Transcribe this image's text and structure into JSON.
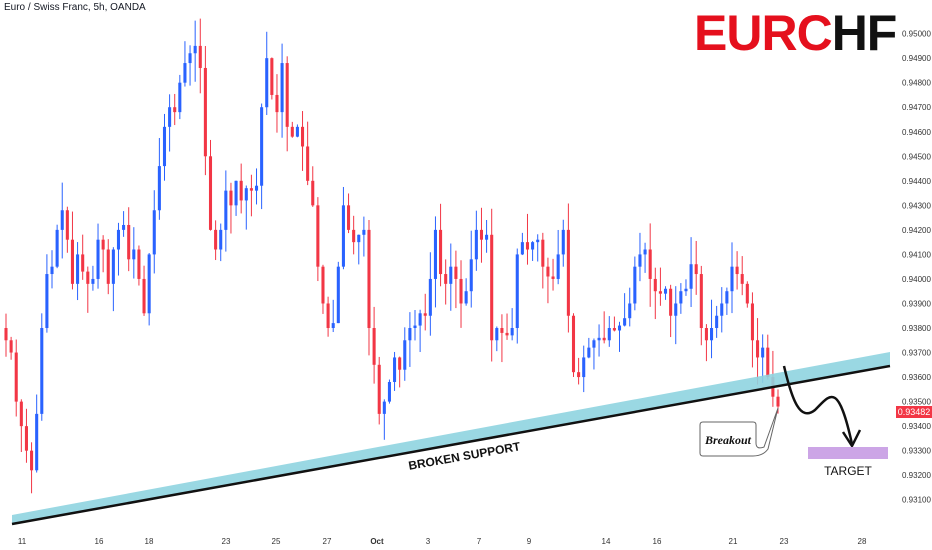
{
  "header": {
    "symbol": "Euro / Swiss Franc, 5h, OANDA"
  },
  "title": {
    "part1": "EURC",
    "part2": "HF"
  },
  "current_price": "0.93482",
  "annotations": {
    "support_label": "BROKEN SUPPORT",
    "breakout_label": "Breakout",
    "target_label": "TARGET"
  },
  "colors": {
    "bull": "#2962ff",
    "bear": "#f23645",
    "support_band": "#8fd4e0",
    "target_box": "#cca5e6",
    "title_red": "#e5101d",
    "price_tag": "#f23645"
  },
  "chart_data": {
    "type": "candlestick",
    "ylim": [
      0.9305,
      0.9508
    ],
    "price_ticks": [
      "0.95000",
      "0.94900",
      "0.94800",
      "0.94700",
      "0.94600",
      "0.94500",
      "0.94400",
      "0.94300",
      "0.94200",
      "0.94100",
      "0.94000",
      "0.93900",
      "0.93800",
      "0.93700",
      "0.93600",
      "0.93500",
      "0.93400",
      "0.93300",
      "0.93200",
      "0.93100"
    ],
    "time_ticks": [
      "11",
      "16",
      "18",
      "23",
      "25",
      "27",
      "Oct",
      "3",
      "7",
      "9",
      "14",
      "16",
      "21",
      "23",
      "28"
    ],
    "ohlc_c": [
      0.9375,
      0.937,
      0.935,
      0.934,
      0.933,
      0.9322,
      0.9345,
      0.938,
      0.9402,
      0.9405,
      0.942,
      0.9428,
      0.9416,
      0.9398,
      0.941,
      0.9403,
      0.9398,
      0.94,
      0.9416,
      0.9412,
      0.9398,
      0.9412,
      0.942,
      0.9422,
      0.9408,
      0.9412,
      0.94,
      0.9386,
      0.941,
      0.9428,
      0.9446,
      0.9462,
      0.947,
      0.9468,
      0.948,
      0.9488,
      0.9492,
      0.9495,
      0.9486,
      0.945,
      0.942,
      0.9412,
      0.942,
      0.9436,
      0.943,
      0.944,
      0.9432,
      0.9437,
      0.9436,
      0.9438,
      0.947,
      0.949,
      0.9475,
      0.9468,
      0.9488,
      0.9462,
      0.9458,
      0.9462,
      0.9454,
      0.944,
      0.943,
      0.9405,
      0.939,
      0.938,
      0.9382,
      0.9405,
      0.943,
      0.942,
      0.9415,
      0.9418,
      0.942,
      0.938,
      0.9365,
      0.9345,
      0.935,
      0.9358,
      0.9368,
      0.9363,
      0.9375,
      0.938,
      0.9381,
      0.9386,
      0.9385,
      0.94,
      0.942,
      0.9402,
      0.9398,
      0.9405,
      0.94,
      0.939,
      0.9395,
      0.9408,
      0.942,
      0.9416,
      0.9418,
      0.9375,
      0.938,
      0.9378,
      0.9377,
      0.938,
      0.941,
      0.9415,
      0.9412,
      0.9415,
      0.9416,
      0.9405,
      0.9401,
      0.94,
      0.941,
      0.942,
      0.9385,
      0.9362,
      0.936,
      0.9368,
      0.9372,
      0.9375,
      0.9376,
      0.9375,
      0.938,
      0.9379,
      0.9381,
      0.9384,
      0.939,
      0.9405,
      0.941,
      0.9412,
      0.94,
      0.9395,
      0.9394,
      0.9396,
      0.9385,
      0.939,
      0.9395,
      0.9396,
      0.9406,
      0.9402,
      0.938,
      0.9375,
      0.938,
      0.9385,
      0.939,
      0.9395,
      0.9405,
      0.9402,
      0.9398,
      0.939,
      0.9375,
      0.9368,
      0.9372,
      0.936,
      0.9352,
      0.9348
    ]
  }
}
